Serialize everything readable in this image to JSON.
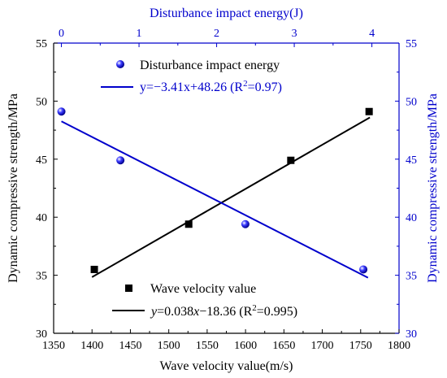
{
  "chart_data": {
    "type": "scatter",
    "title": "",
    "x_bottom": {
      "label": "Wave velocity value(m/s)",
      "range": [
        1350,
        1800
      ],
      "ticks": [
        1350,
        1400,
        1450,
        1500,
        1550,
        1600,
        1650,
        1700,
        1750,
        1800
      ]
    },
    "x_top": {
      "label": "Disturbance impact energy(J)",
      "range": [
        -0.1,
        4.35
      ],
      "ticks": [
        0,
        1,
        2,
        3,
        4
      ]
    },
    "y_left": {
      "label": "Dynamic compressive strength/MPa",
      "range": [
        30,
        55
      ],
      "ticks": [
        30,
        35,
        40,
        45,
        50,
        55
      ]
    },
    "y_right": {
      "label": "Dynamic compressive strength/MPa",
      "range": [
        30,
        55
      ],
      "ticks": [
        30,
        35,
        40,
        45,
        50,
        55
      ]
    },
    "series": [
      {
        "name": "Wave velocity value",
        "axis": "bottom-left",
        "marker": "square",
        "color": "#000000",
        "points": [
          [
            1403,
            35.5
          ],
          [
            1526,
            39.4
          ],
          [
            1659,
            44.9
          ],
          [
            1761,
            49.1
          ]
        ],
        "fit": {
          "label_parts": [
            "y",
            "=0.038",
            "x",
            "−18.36 (R",
            "2",
            "=0.995)"
          ],
          "slope": 0.038,
          "intercept": -18.36,
          "x_range": [
            1400,
            1762
          ]
        }
      },
      {
        "name": "Disturbance impact energy",
        "axis": "top-right",
        "marker": "circle",
        "color": "#0000cc",
        "points": [
          [
            0,
            49.1
          ],
          [
            0.76,
            44.9
          ],
          [
            2.37,
            39.4
          ],
          [
            3.89,
            35.5
          ]
        ],
        "fit": {
          "label_parts": [
            "y=−3.41x+48.26 (R",
            "2",
            "=0.97)"
          ],
          "slope": -3.41,
          "intercept": 48.26,
          "x_range": [
            0,
            3.95
          ]
        }
      }
    ],
    "legend": "inside",
    "grid": false
  }
}
